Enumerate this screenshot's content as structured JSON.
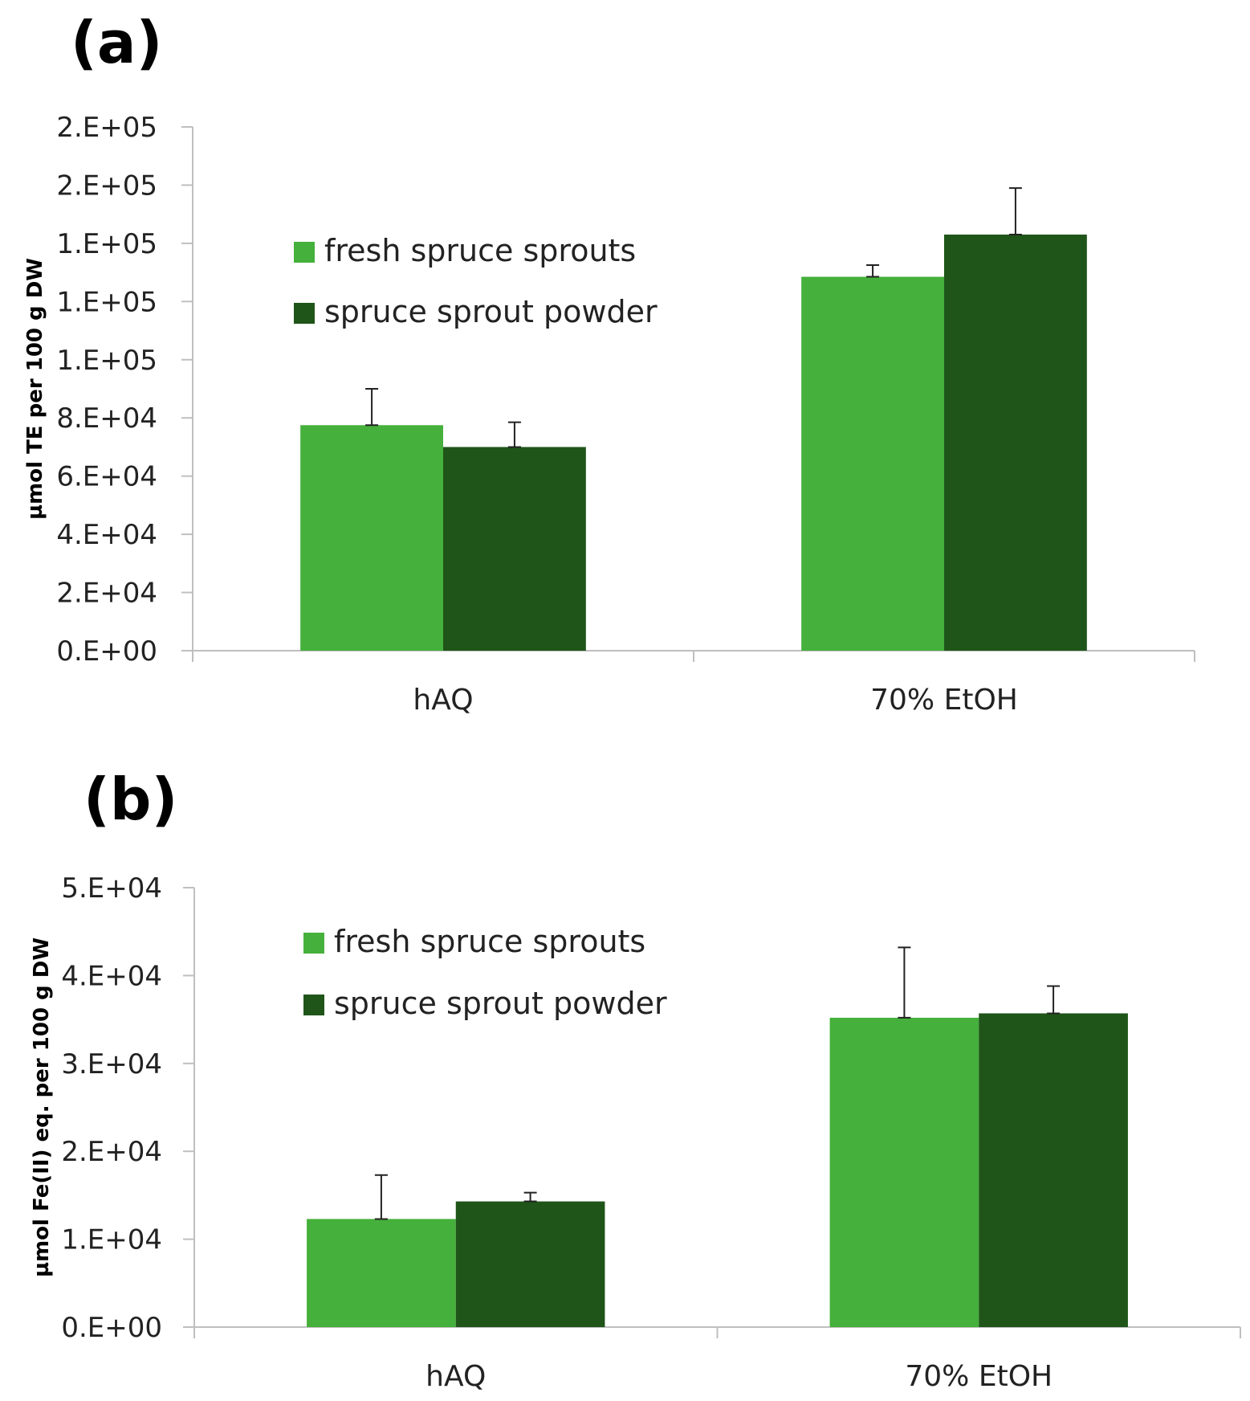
{
  "chart_data": [
    {
      "panel": "(a)",
      "type": "bar",
      "ylabel": "µmol TE per 100 g DW",
      "xlabel": "",
      "categories": [
        "hAQ",
        "70% EtOH"
      ],
      "ylim": [
        0,
        180000
      ],
      "yticks": [
        0,
        20000,
        40000,
        60000,
        80000,
        100000,
        120000,
        140000,
        160000,
        180000
      ],
      "ytick_labels": [
        "0.E+00",
        "2.E+04",
        "4.E+04",
        "6.E+04",
        "8.E+04",
        "1.E+05",
        "1.E+05",
        "1.E+05",
        "2.E+05",
        "2.E+05"
      ],
      "legend": [
        "fresh spruce sprouts",
        "spruce sprout powder"
      ],
      "series": [
        {
          "name": "fresh spruce sprouts",
          "color": "#45b03b",
          "values": [
            77500,
            128500
          ],
          "errors": [
            12500,
            4000
          ]
        },
        {
          "name": "spruce sprout powder",
          "color": "#1f5519",
          "values": [
            70000,
            143000
          ],
          "errors": [
            8500,
            16000
          ]
        }
      ]
    },
    {
      "panel": "(b)",
      "type": "bar",
      "ylabel": "µmol Fe(II) eq. per 100 g DW",
      "xlabel": "",
      "categories": [
        "hAQ",
        "70% EtOH"
      ],
      "ylim": [
        0,
        50000
      ],
      "yticks": [
        0,
        10000,
        20000,
        30000,
        40000,
        50000
      ],
      "ytick_labels": [
        "0.E+00",
        "1.E+04",
        "2.E+04",
        "3.E+04",
        "4.E+04",
        "5.E+04"
      ],
      "legend": [
        "fresh spruce sprouts",
        "spruce sprout powder"
      ],
      "series": [
        {
          "name": "fresh spruce sprouts",
          "color": "#45b03b",
          "values": [
            12300,
            35200
          ],
          "errors": [
            5000,
            8000
          ]
        },
        {
          "name": "spruce sprout powder",
          "color": "#1f5519",
          "values": [
            14300,
            35700
          ],
          "errors": [
            1000,
            3100
          ]
        }
      ]
    }
  ]
}
